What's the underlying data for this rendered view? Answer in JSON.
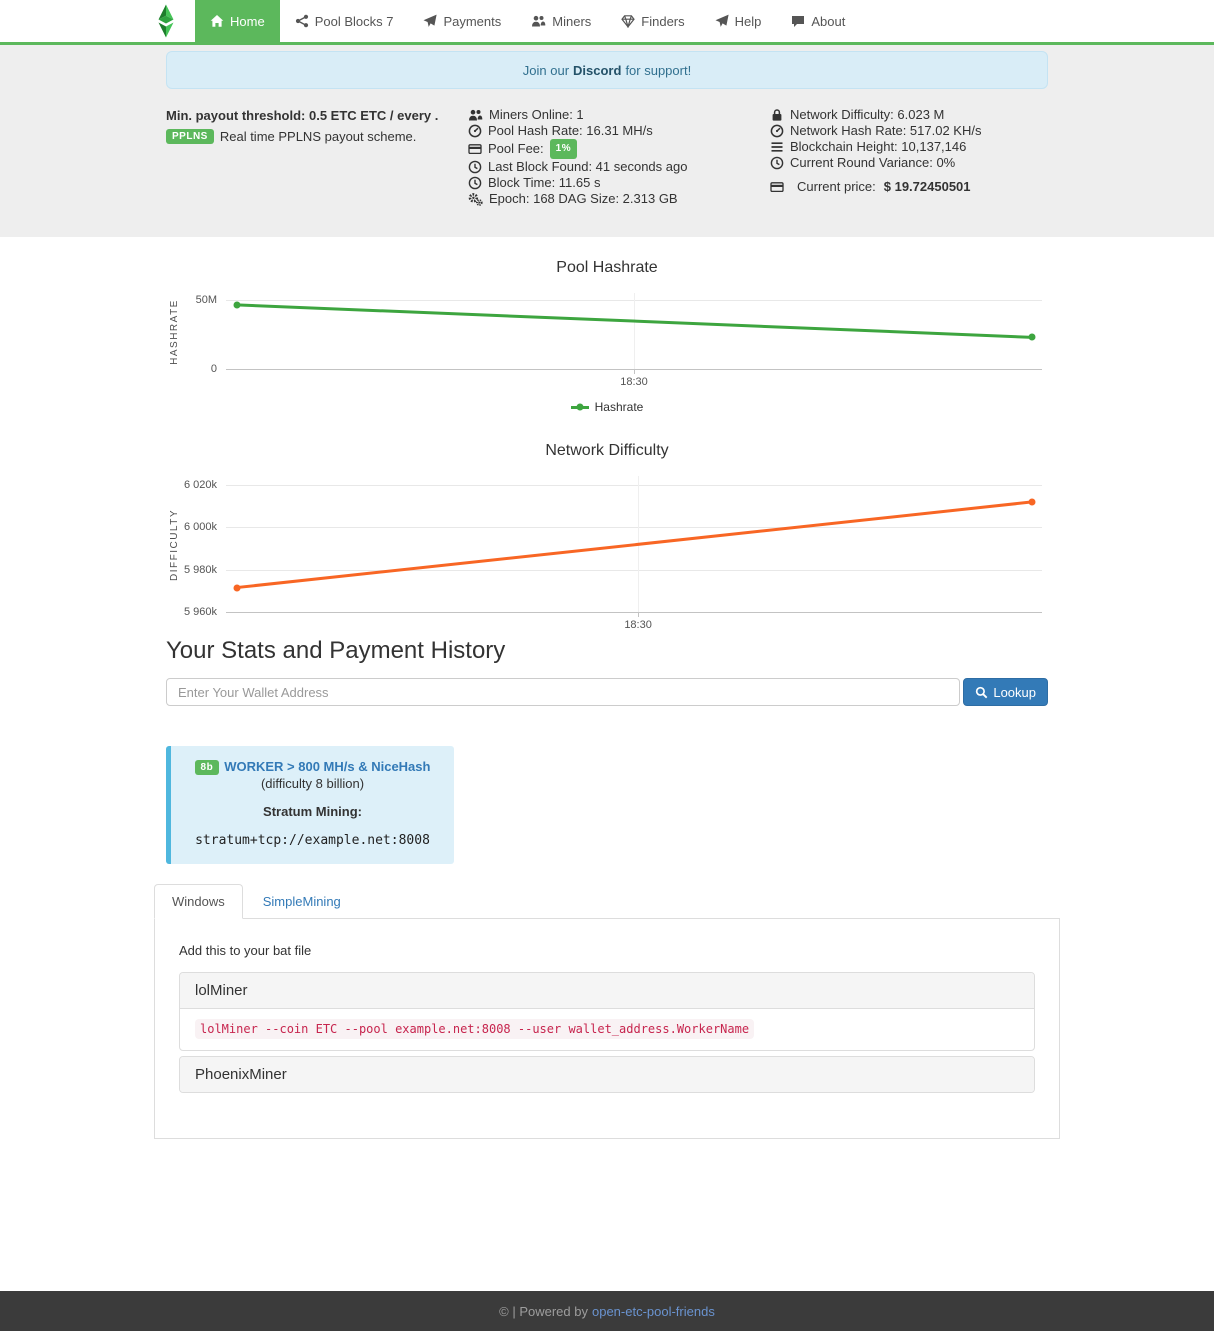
{
  "navbar": {
    "items": [
      {
        "label": "Home",
        "icon": "home-icon",
        "active": true
      },
      {
        "label": "Pool Blocks 7",
        "icon": "share-icon",
        "active": false
      },
      {
        "label": "Payments",
        "icon": "paper-plane-icon",
        "active": false
      },
      {
        "label": "Miners",
        "icon": "users-icon",
        "active": false
      },
      {
        "label": "Finders",
        "icon": "gem-icon",
        "active": false
      },
      {
        "label": "Help",
        "icon": "paper-plane-icon",
        "active": false
      },
      {
        "label": "About",
        "icon": "comment-icon",
        "active": false
      }
    ]
  },
  "banner": {
    "prefix": "Join our",
    "link": "Discord",
    "suffix": "for support!"
  },
  "left_stats": {
    "threshold": "Min. payout threshold: 0.5 ETC ETC / every .",
    "badge": "PPLNS",
    "scheme": "Real time PPLNS payout scheme."
  },
  "center_stats": [
    {
      "icon": "users-icon",
      "text": "Miners Online: 1"
    },
    {
      "icon": "tachometer-icon",
      "text": "Pool Hash Rate: 16.31 MH/s"
    },
    {
      "icon": "credit-card-icon",
      "text": "Pool Fee:",
      "badge": "1%"
    },
    {
      "icon": "clock-icon",
      "text": "Last Block Found: 41 seconds ago"
    },
    {
      "icon": "clock-icon",
      "text": "Block Time: 11.65 s"
    },
    {
      "icon": "cogs-icon",
      "text": "Epoch: 168 DAG Size: 2.313 GB"
    }
  ],
  "right_stats": [
    {
      "icon": "lock-icon",
      "text": "Network Difficulty: 6.023 M"
    },
    {
      "icon": "tachometer-icon",
      "text": "Network Hash Rate: 517.02 KH/s"
    },
    {
      "icon": "bars-icon",
      "text": "Blockchain Height: 10,137,146"
    },
    {
      "icon": "clock-icon",
      "text": "Current Round Variance: 0%"
    },
    {
      "icon": "credit-card-icon",
      "text": "Current price:",
      "value": "$ 19.72450501"
    }
  ],
  "chart_data": [
    {
      "type": "line",
      "title": "Pool Hashrate",
      "ylabel": "HASHRATE",
      "ylim": [
        0,
        55000000
      ],
      "yticks": [
        {
          "value": 0,
          "label": "0"
        },
        {
          "value": 50000000,
          "label": "50M"
        }
      ],
      "xticks": [
        {
          "pos": 0.5,
          "label": "18:30"
        }
      ],
      "series": [
        {
          "name": "Hashrate",
          "color": "#3da53f",
          "points": [
            {
              "x": 0.013,
              "y": 46400000
            },
            {
              "x": 0.988,
              "y": 22900000
            }
          ]
        }
      ],
      "legend": [
        {
          "label": "Hashrate",
          "color": "#3da53f"
        }
      ],
      "legend_position": "bottom-center",
      "grid": true
    },
    {
      "type": "line",
      "title": "Network Difficulty",
      "ylabel": "DIFFICULTY",
      "ylim": [
        5960000,
        6024000
      ],
      "yticks": [
        {
          "value": 5960000,
          "label": "5 960k"
        },
        {
          "value": 5980000,
          "label": "5 980k"
        },
        {
          "value": 6000000,
          "label": "6 000k"
        },
        {
          "value": 6020000,
          "label": "6 020k"
        }
      ],
      "xticks": [
        {
          "pos": 0.505,
          "label": "18:30"
        }
      ],
      "series": [
        {
          "name": "Difficulty",
          "color": "#f86624",
          "points": [
            {
              "x": 0.013,
              "y": 5971500
            },
            {
              "x": 0.988,
              "y": 6011800
            }
          ]
        }
      ],
      "legend": [],
      "grid": true
    }
  ],
  "lookup": {
    "heading": "Your Stats and Payment History",
    "placeholder": "Enter Your Wallet Address",
    "button": "Lookup"
  },
  "worker_info": {
    "badge": "8b",
    "title": "WORKER > 800 MH/s & NiceHash",
    "subtitle": "(difficulty 8 billion)",
    "stratum_label": "Stratum Mining:",
    "stratum_url": "stratum+tcp://example.net:8008"
  },
  "tabs": [
    {
      "label": "Windows",
      "active": true
    },
    {
      "label": "SimpleMining",
      "active": false
    }
  ],
  "bat_note": "Add this to your bat file",
  "miners": [
    {
      "name": "lolMiner",
      "command": "lolMiner --coin ETC --pool example.net:8008 --user wallet_address.WorkerName",
      "expanded": true
    },
    {
      "name": "PhoenixMiner",
      "expanded": false
    }
  ],
  "footer": {
    "text": "© | Powered by",
    "link": "open-etc-pool-friends"
  },
  "colors": {
    "accent_green": "#5cb85c",
    "link_blue": "#337ab7",
    "hashrate_line": "#3da53f",
    "difficulty_line": "#f86624",
    "info_bg": "#d9edf7",
    "callout_border": "#4fb7de",
    "footer_bg": "#3b3b3b"
  }
}
